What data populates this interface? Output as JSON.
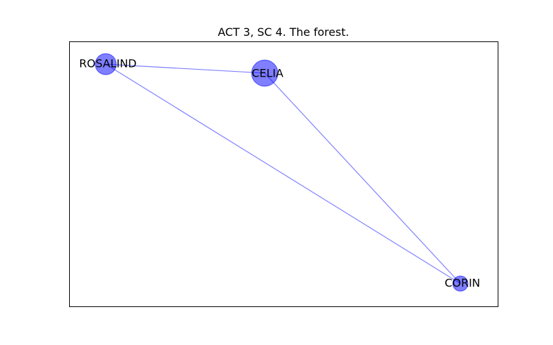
{
  "figure": {
    "title": "ACT 3, SC 4. The forest."
  },
  "colors": {
    "node_fill": "#0000ff",
    "node_opacity": 0.5,
    "edge_stroke": "#0000ff",
    "edge_opacity": 0.5,
    "frame": "#000000",
    "background": "#ffffff"
  },
  "graph": {
    "nodes": [
      {
        "id": "rosalind",
        "label": "ROSALIND",
        "weight": 2
      },
      {
        "id": "celia",
        "label": "CELIA",
        "weight": 4
      },
      {
        "id": "corin",
        "label": "CORIN",
        "weight": 0.6
      }
    ],
    "edges": [
      {
        "source": "rosalind",
        "target": "celia"
      },
      {
        "source": "rosalind",
        "target": "corin"
      },
      {
        "source": "celia",
        "target": "corin"
      }
    ]
  }
}
